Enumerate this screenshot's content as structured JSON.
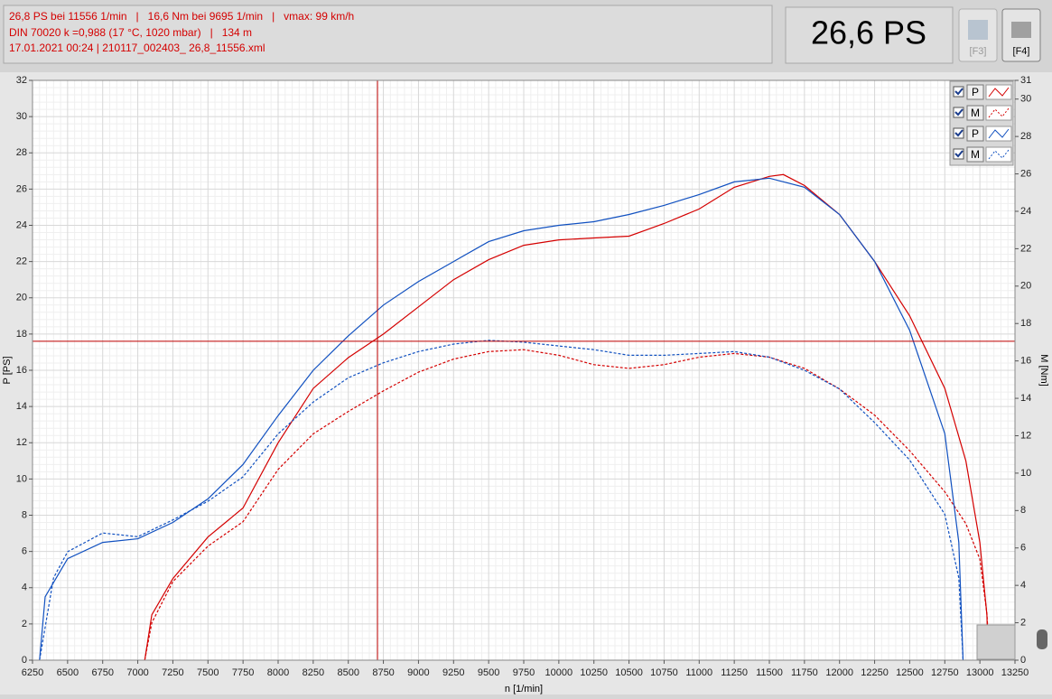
{
  "header": {
    "lines": [
      "26,8 PS bei 11556 1/min   |   16,6 Nm bei 9695 1/min   |   vmax: 99 km/h",
      "DIN 70020 k =0,988 (17 °C, 1020 mbar)   |   134 m",
      "17.01.2021 00:24 | 210117_002403_ 26,8_11556.xml"
    ],
    "display": "26,6 PS",
    "buttons": [
      "[F3]",
      "[F4]"
    ]
  },
  "chart_data": {
    "type": "line",
    "x_label": "n [1/min]",
    "y_label": "P [PS]",
    "y2_label": "M [Nm]",
    "xlim": [
      6250,
      13250
    ],
    "xticks": [
      6250,
      6500,
      6750,
      7000,
      7250,
      7500,
      7750,
      8000,
      8250,
      8500,
      8750,
      9000,
      9250,
      9500,
      9750,
      10000,
      10250,
      10500,
      10750,
      11000,
      11250,
      11500,
      11750,
      12000,
      12250,
      12500,
      12750,
      13000,
      13250
    ],
    "ylim": [
      0,
      32
    ],
    "yticks": [
      0,
      2,
      4,
      6,
      8,
      10,
      12,
      14,
      16,
      18,
      20,
      22,
      24,
      26,
      28,
      30,
      32
    ],
    "y2lim": [
      0,
      31
    ],
    "y2ticks": [
      0,
      2,
      4,
      6,
      8,
      10,
      12,
      14,
      16,
      18,
      20,
      22,
      24,
      26,
      28,
      30,
      31
    ],
    "grid": true,
    "cursor": {
      "x": 8708,
      "y": 17.6,
      "color": "#c00000"
    },
    "series": [
      {
        "name": "P",
        "color": "#d40000",
        "dashed": false,
        "axis": "y",
        "x": [
          7050,
          7100,
          7250,
          7500,
          7750,
          8000,
          8250,
          8500,
          8750,
          9000,
          9250,
          9500,
          9750,
          10000,
          10250,
          10500,
          10750,
          11000,
          11250,
          11500,
          11600,
          11750,
          12000,
          12250,
          12500,
          12750,
          12900,
          13000,
          13050,
          13060
        ],
        "values": [
          0,
          2.5,
          4.5,
          6.8,
          8.4,
          12.0,
          15.0,
          16.7,
          18.0,
          19.5,
          21.0,
          22.1,
          22.9,
          23.2,
          23.3,
          23.4,
          24.1,
          24.9,
          26.1,
          26.7,
          26.8,
          26.2,
          24.6,
          22.0,
          19.0,
          15.0,
          11.0,
          6.5,
          2.5,
          0
        ]
      },
      {
        "name": "M",
        "color": "#d40000",
        "dashed": true,
        "axis": "y2",
        "x": [
          7050,
          7100,
          7250,
          7500,
          7750,
          8000,
          8250,
          8500,
          8750,
          9000,
          9250,
          9500,
          9750,
          10000,
          10250,
          10500,
          10750,
          11000,
          11250,
          11500,
          11750,
          12000,
          12250,
          12500,
          12750,
          12900,
          13000,
          13050,
          13070
        ],
        "values": [
          0,
          2.0,
          4.2,
          6.1,
          7.4,
          10.2,
          12.1,
          13.3,
          14.4,
          15.4,
          16.1,
          16.5,
          16.6,
          16.3,
          15.8,
          15.6,
          15.8,
          16.2,
          16.4,
          16.2,
          15.6,
          14.5,
          13.1,
          11.2,
          9.0,
          7.3,
          5.4,
          2.5,
          0
        ]
      },
      {
        "name": "P",
        "color": "#1050c0",
        "dashed": false,
        "axis": "y",
        "x": [
          6300,
          6340,
          6500,
          6750,
          7000,
          7250,
          7500,
          7750,
          8000,
          8250,
          8500,
          8750,
          9000,
          9250,
          9500,
          9750,
          10000,
          10250,
          10500,
          10750,
          11000,
          11250,
          11500,
          11750,
          12000,
          12250,
          12500,
          12750,
          12850,
          12880
        ],
        "values": [
          0,
          3.5,
          5.6,
          6.5,
          6.7,
          7.6,
          8.9,
          10.8,
          13.5,
          16.0,
          17.9,
          19.6,
          20.9,
          22.0,
          23.1,
          23.7,
          24.0,
          24.2,
          24.6,
          25.1,
          25.7,
          26.4,
          26.6,
          26.1,
          24.6,
          22.0,
          18.2,
          12.5,
          6.5,
          0
        ]
      },
      {
        "name": "M",
        "color": "#1050c0",
        "dashed": true,
        "axis": "y2",
        "x": [
          6300,
          6400,
          6500,
          6750,
          7000,
          7250,
          7500,
          7750,
          8000,
          8250,
          8500,
          8750,
          9000,
          9250,
          9500,
          9750,
          10000,
          10250,
          10500,
          10750,
          11000,
          11250,
          11500,
          11750,
          12000,
          12250,
          12500,
          12750,
          12850,
          12880
        ],
        "values": [
          0,
          4.4,
          5.8,
          6.8,
          6.6,
          7.5,
          8.5,
          9.8,
          12.1,
          13.8,
          15.1,
          15.9,
          16.5,
          16.9,
          17.1,
          17.0,
          16.8,
          16.6,
          16.3,
          16.3,
          16.4,
          16.5,
          16.2,
          15.5,
          14.5,
          12.7,
          10.7,
          7.8,
          4.4,
          0
        ]
      }
    ]
  }
}
